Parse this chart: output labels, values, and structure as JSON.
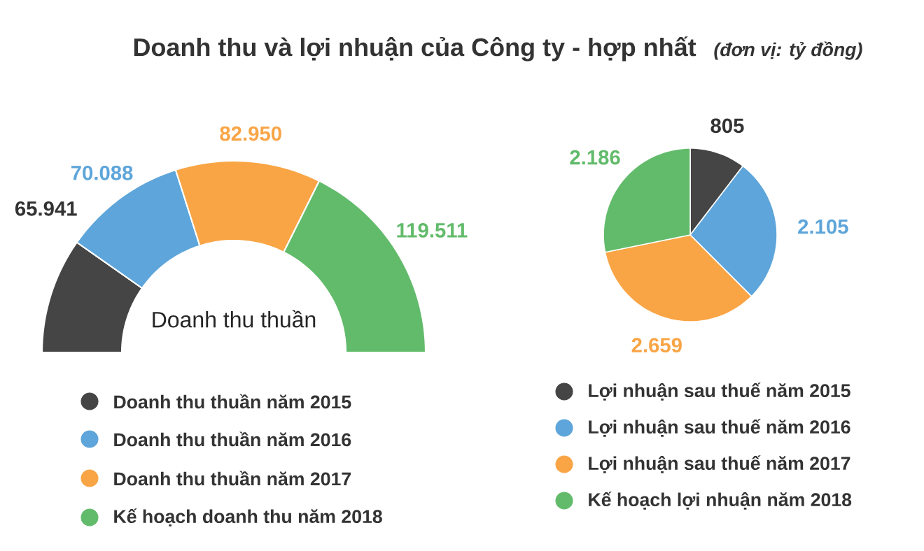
{
  "chart_data": [
    {
      "type": "donut",
      "title": "Doanh thu và lợi nhuận của Công ty - hợp nhất",
      "categories": [
        "Doanh thu thuần năm 2015",
        "Doanh thu thuần năm 2016",
        "Doanh thu thuần năm 2017",
        "Kế hoạch doanh thu năm 2018"
      ],
      "values": [
        65941,
        70088,
        82950,
        119511
      ],
      "value_labels": [
        "65.941",
        "70.088",
        "82.950",
        "119.511"
      ],
      "colors": [
        "#454545",
        "#5da5da",
        "#f9a546",
        "#62bb6b"
      ],
      "annotations": [
        "Doanh thu thuần"
      ],
      "legend": "bottom"
    },
    {
      "type": "pie",
      "subtitle": "(đơn vị: tỷ đồng)",
      "categories": [
        "Lợi nhuận sau thuế năm 2015",
        "Lợi nhuận sau thuế năm 2016",
        "Lợi nhuận sau thuế năm 2017",
        "Kế hoạch lợi nhuận năm 2018"
      ],
      "values": [
        805,
        2105,
        2659,
        2186
      ],
      "value_labels": [
        "805",
        "2.105",
        "2.659",
        "2.186"
      ],
      "colors": [
        "#454545",
        "#5da5da",
        "#f9a546",
        "#62bb6b"
      ],
      "legend": "bottom"
    }
  ]
}
